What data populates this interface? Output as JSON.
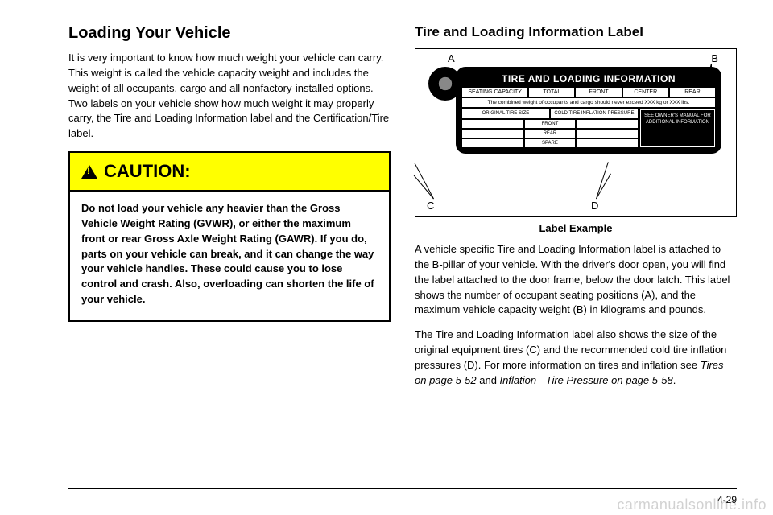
{
  "left": {
    "heading": "Loading Your Vehicle",
    "intro": "It is very important to know how much weight your vehicle can carry. This weight is called the vehicle capacity weight and includes the weight of all occupants, cargo and all nonfactory-installed options. Two labels on your vehicle show how much weight it may properly carry, the Tire and Loading Information label and the Certification/Tire label.",
    "caution_title": "CAUTION:",
    "caution_body": "Do not load your vehicle any heavier than the Gross Vehicle Weight Rating (GVWR), or either the maximum front or rear Gross Axle Weight Rating (GAWR). If you do, parts on your vehicle can break, and it can change the way your vehicle handles. These could cause you to lose control and crash. Also, overloading can shorten the life of your vehicle."
  },
  "right": {
    "heading": "Tire and Loading Information Label",
    "callouts": {
      "a": "A",
      "b": "B",
      "c": "C",
      "d": "D"
    },
    "placard": {
      "title": "TIRE AND LOADING INFORMATION",
      "row1": [
        "SEATING CAPACITY",
        "TOTAL",
        "FRONT",
        "CENTER",
        "REAR"
      ],
      "note": "The combined weight of occupants and cargo should never exceed XXX kg or XXX lbs.",
      "col_headers": [
        "ORIGINAL TIRE SIZE",
        "COLD TIRE INFLATION PRESSURE"
      ],
      "row_labels": [
        "FRONT",
        "REAR",
        "SPARE"
      ],
      "right_box": "SEE OWNER'S MANUAL FOR ADDITIONAL INFORMATION"
    },
    "caption": "Label Example",
    "p1": "A vehicle specific Tire and Loading Information label is attached to the B-pillar of your vehicle. With the driver's door open, you will find the label attached to the door frame, below the door latch. This label shows the number of occupant seating positions (A), and the maximum vehicle capacity weight (B) in kilograms and pounds.",
    "p2a": "The Tire and Loading Information label also shows the size of the original equipment tires (C) and the recommended cold tire inflation pressures (D). For more information on tires and inflation see ",
    "ref1": "Tires on page 5-52",
    "p2b": " and ",
    "ref2": "Inflation - Tire Pressure on page 5-58",
    "p2c": "."
  },
  "page_number": "4-29",
  "watermark": "carmanualsonline.info"
}
